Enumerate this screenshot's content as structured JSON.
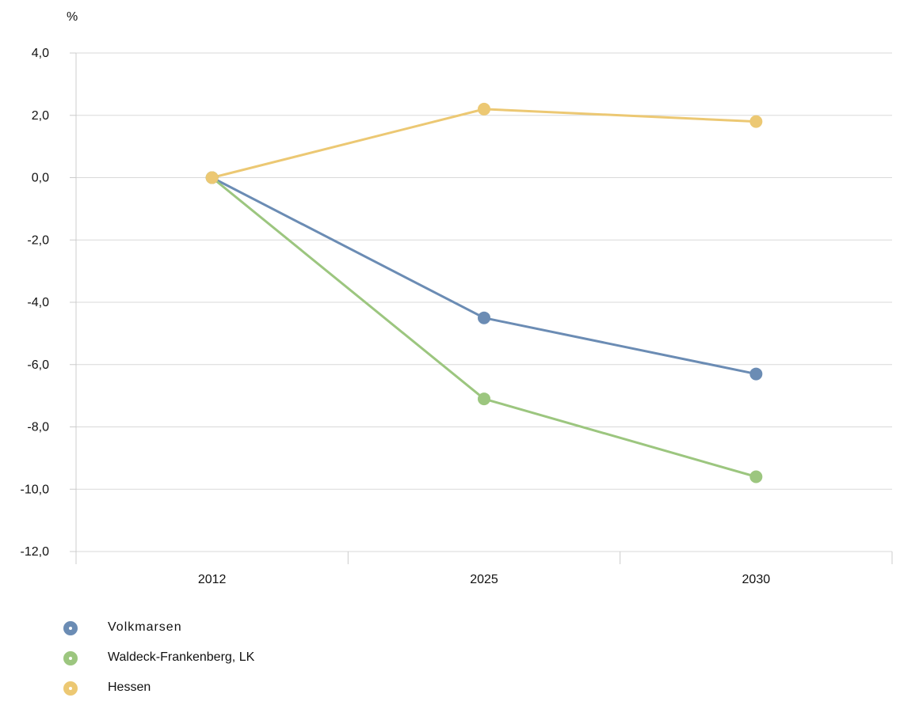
{
  "chart_data": {
    "type": "line",
    "categories": [
      "2012",
      "2025",
      "2030"
    ],
    "series": [
      {
        "name": "Volkmarsen",
        "values": [
          0.0,
          -4.5,
          -6.3
        ],
        "color": "#6b8cb4"
      },
      {
        "name": "Waldeck-Frankenberg, LK",
        "values": [
          0.0,
          -7.1,
          -9.6
        ],
        "color": "#9cc67f"
      },
      {
        "name": "Hessen",
        "values": [
          0.0,
          2.2,
          1.8
        ],
        "color": "#ecc873"
      }
    ],
    "ylabel": "%",
    "ylim": [
      -12,
      4
    ],
    "yticks": [
      "4,0",
      "2,0",
      "0,0",
      "-2,0",
      "-4,0",
      "-6,0",
      "-8,0",
      "-10,0",
      "-12,0"
    ],
    "grid": true,
    "legend_position": "bottom-left"
  }
}
